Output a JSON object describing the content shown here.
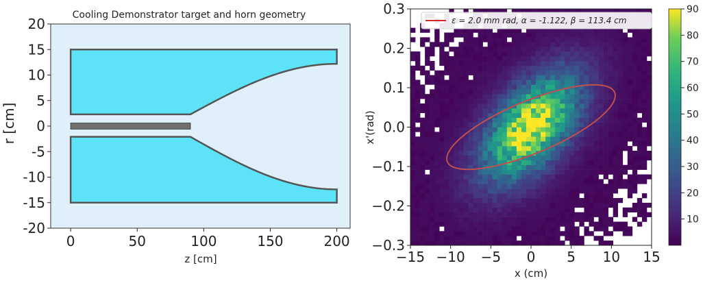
{
  "chart_data": [
    {
      "type": "diagram",
      "title": "Cooling Demonstrator target and horn geometry",
      "xlabel": "z [cm]",
      "ylabel": "r [cm]",
      "xlim": [
        -15,
        210
      ],
      "ylim": [
        -20,
        20
      ],
      "xticks": [
        0,
        50,
        100,
        150,
        200
      ],
      "yticks": [
        20,
        15,
        10,
        5,
        0,
        -5,
        -10,
        -15,
        -20
      ],
      "background_color": "#dff0fb",
      "fill_color": "#5de3f7",
      "target_color": "#707070",
      "outline_color": "#555555",
      "target": {
        "z": [
          0,
          90
        ],
        "r": [
          -0.6,
          0.6
        ]
      },
      "horn_upper": {
        "outer_r": 15,
        "neck_z": 90,
        "neck_r": 2.3,
        "end_z": 200,
        "end_r": 12.2
      },
      "horn_lower": {
        "outer_r": -15,
        "neck_z": 90,
        "neck_r": -2.1,
        "end_z": 200,
        "end_r": -12.4
      }
    },
    {
      "type": "heatmap",
      "xlabel": "x (cm)",
      "ylabel": "x'(rad)",
      "xlim": [
        -15,
        15
      ],
      "ylim": [
        -0.3,
        0.3
      ],
      "xticks": [
        -15,
        -10,
        -5,
        0,
        5,
        10,
        15
      ],
      "yticks": [
        0.3,
        0.2,
        0.1,
        0.0,
        -0.1,
        -0.2,
        -0.3
      ],
      "bins": [
        50,
        50
      ],
      "colormap": "viridis",
      "colorbar": {
        "min": 0,
        "max": 90,
        "ticks": [
          90,
          80,
          70,
          60,
          50,
          40,
          30,
          20,
          10
        ]
      },
      "density_model": {
        "peak_count": 88,
        "sigma_x": 4.0,
        "sigma_xp": 0.09,
        "correlation": 0.55,
        "halo_fraction": 0.06
      },
      "legend": {
        "entries": [
          "ε = 2.0 mm rad, α = -1.122, β = 113.4 cm"
        ],
        "placement": "top",
        "line_color": "#d62728"
      },
      "ellipse": {
        "epsilon_mm_rad": 2.0,
        "alpha": -1.122,
        "beta_cm": 113.4,
        "center": [
          0,
          0
        ],
        "color": "#c0504d"
      }
    }
  ]
}
